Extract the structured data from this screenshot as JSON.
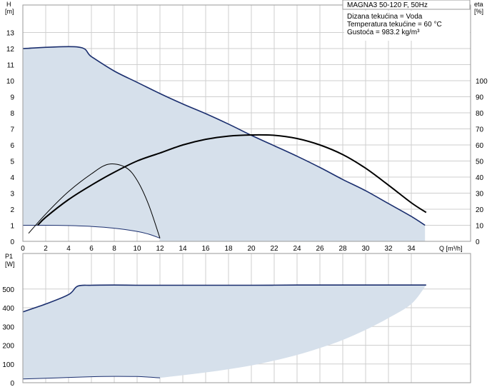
{
  "chart_data": [
    {
      "type": "line",
      "panel": "head-efficiency",
      "title": "MAGNA3 50-120 F, 50Hz",
      "annotations": [
        "Dizana tekućina = Voda",
        "Temperatura tekućine = 60 °C",
        "Gustoća = 983.2 kg/m³"
      ],
      "xlabel": "Q [m³/h]",
      "ylabel": [
        "H",
        "[m]"
      ],
      "y2label": [
        "eta",
        "[%]"
      ],
      "xlim": [
        0,
        35.5
      ],
      "ylim": [
        0,
        14
      ],
      "y2lim": [
        0,
        140
      ],
      "x_ticks": [
        0,
        2,
        4,
        6,
        8,
        10,
        12,
        14,
        16,
        18,
        20,
        22,
        24,
        26,
        28,
        30,
        32,
        34
      ],
      "y_ticks": [
        0,
        1,
        2,
        3,
        4,
        5,
        6,
        7,
        8,
        9,
        10,
        11,
        12,
        13
      ],
      "y2_ticks": [
        0,
        10,
        20,
        30,
        40,
        50,
        60,
        70,
        80,
        90,
        100
      ],
      "grid": true,
      "colors": {
        "area": "#d6e0eb",
        "max_curve": "#1a2e6e",
        "curve": "#000000"
      },
      "series": [
        {
          "role": "max-head-curve",
          "axis": "left",
          "x": [
            0,
            4.8,
            6,
            8,
            10,
            12,
            14,
            16,
            18,
            20,
            22,
            24,
            26,
            28,
            30,
            32,
            34,
            35.2
          ],
          "y": [
            12,
            12.1,
            11.5,
            10.6,
            9.9,
            9.2,
            8.55,
            7.95,
            7.3,
            6.6,
            5.95,
            5.3,
            4.6,
            3.85,
            3.15,
            2.35,
            1.55,
            1.0
          ]
        },
        {
          "role": "min-head-curve",
          "axis": "left",
          "x": [
            0,
            2,
            4,
            6,
            8,
            10,
            11,
            12
          ],
          "y": [
            1.0,
            1.0,
            0.98,
            0.93,
            0.82,
            0.62,
            0.45,
            0.2
          ]
        },
        {
          "role": "efficiency-max",
          "axis": "right",
          "x": [
            1.3,
            2,
            4,
            6,
            8,
            10,
            12,
            14,
            16,
            18,
            20,
            22,
            24,
            26,
            28,
            30,
            32,
            34,
            35.3
          ],
          "y": [
            10,
            15,
            26,
            35,
            43,
            50,
            55,
            60,
            63.5,
            65.5,
            66.2,
            66,
            64,
            60,
            54,
            45.5,
            35,
            24,
            18
          ]
        },
        {
          "role": "efficiency-min",
          "axis": "right",
          "x": [
            0.5,
            2,
            4,
            6,
            7.5,
            9,
            10,
            11,
            12
          ],
          "y": [
            5,
            17,
            31,
            42,
            48,
            46,
            38,
            23,
            2
          ]
        }
      ]
    },
    {
      "type": "area",
      "panel": "power",
      "ylabel": [
        "P1",
        "[W]"
      ],
      "xlim": [
        0,
        35.5
      ],
      "ylim": [
        0,
        570
      ],
      "y_ticks": [
        0,
        100,
        200,
        300,
        400,
        500
      ],
      "grid": true,
      "colors": {
        "area": "#d6e0eb",
        "max_curve": "#1a2e6e"
      },
      "series": [
        {
          "role": "max-power",
          "x": [
            0,
            2,
            4,
            4.8,
            6,
            8,
            10,
            12,
            16,
            20,
            24,
            28,
            32,
            35.3
          ],
          "y": [
            378,
            420,
            470,
            515,
            520,
            521,
            520,
            520,
            520,
            520,
            521,
            521,
            521,
            521
          ]
        },
        {
          "role": "min-power",
          "x": [
            0,
            2,
            4,
            6,
            8,
            10,
            11,
            12
          ],
          "y": [
            20,
            24,
            28,
            32,
            34,
            33,
            30,
            26
          ]
        },
        {
          "role": "area-lower-boundary",
          "x": [
            12,
            14,
            16,
            18,
            20,
            22,
            24,
            26,
            28,
            30,
            32,
            34,
            35.3
          ],
          "y": [
            26,
            40,
            55,
            72,
            92,
            118,
            148,
            185,
            228,
            282,
            345,
            420,
            521
          ]
        }
      ]
    }
  ]
}
